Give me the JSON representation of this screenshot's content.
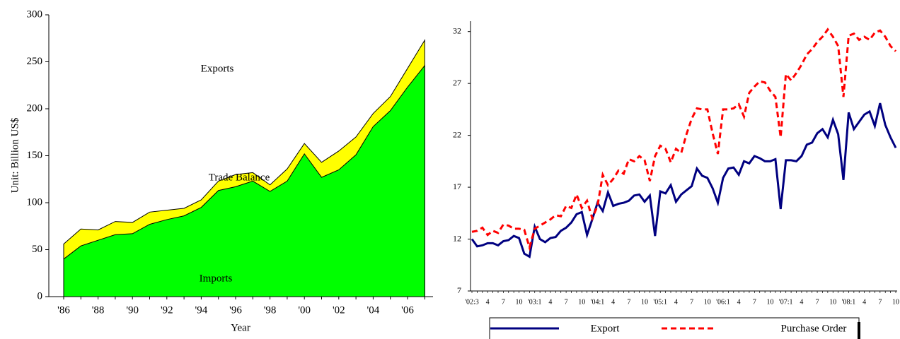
{
  "chart_data": [
    {
      "type": "area",
      "ylabel": "Unit: Billion US$",
      "xlabel": "Year",
      "categories": [
        "'86",
        null,
        "'88",
        null,
        "'90",
        null,
        "'92",
        null,
        "'94",
        null,
        "'96",
        null,
        "'98",
        null,
        "'00",
        null,
        "'02",
        null,
        "'04",
        null,
        "'06",
        null
      ],
      "series": [
        {
          "name": "Exports",
          "color": "#ffff00",
          "values": [
            56,
            72,
            71,
            80,
            79,
            90,
            92,
            94,
            103,
            123,
            130,
            132,
            119,
            136,
            163,
            143,
            155,
            170,
            195,
            213,
            243,
            273
          ]
        },
        {
          "name": "Imports",
          "color": "#00ff00",
          "values": [
            40,
            54,
            60,
            66,
            67,
            77,
            82,
            86,
            95,
            113,
            117,
            123,
            112,
            123,
            152,
            127,
            135,
            151,
            181,
            198,
            223,
            246
          ]
        }
      ],
      "annotations": [
        "Trade Balance"
      ],
      "ylim": [
        0,
        300
      ],
      "yticks": [
        0,
        50,
        100,
        150,
        200,
        250,
        300
      ]
    },
    {
      "type": "line",
      "categories": [
        "'02:3",
        null,
        null,
        "4",
        null,
        null,
        "7",
        null,
        null,
        "10",
        null,
        null,
        "'03:1",
        null,
        null,
        "4",
        null,
        null,
        "7",
        null,
        null,
        "10",
        null,
        null,
        "'04:1",
        null,
        null,
        "4",
        null,
        null,
        "7",
        null,
        null,
        "10",
        null,
        null,
        "'05:1",
        null,
        null,
        "4",
        null,
        null,
        "7",
        null,
        null,
        "10",
        null,
        null,
        "'06:1",
        null,
        null,
        "4",
        null,
        null,
        "7",
        null,
        null,
        "10",
        null,
        null,
        "'07:1",
        null,
        null,
        "4",
        null,
        null,
        "7",
        null,
        null,
        "10",
        null,
        null,
        "'08:1",
        null,
        null,
        "4",
        null,
        null,
        "7",
        null,
        null,
        "10"
      ],
      "series": [
        {
          "name": "Export",
          "color": "#000080",
          "dashed": false,
          "values": [
            12.0,
            11.3,
            11.4,
            11.6,
            11.6,
            11.4,
            11.8,
            11.9,
            12.3,
            12.1,
            10.6,
            10.3,
            13.2,
            12.0,
            11.7,
            12.1,
            12.2,
            12.8,
            13.1,
            13.6,
            14.4,
            14.6,
            12.4,
            13.9,
            15.5,
            14.7,
            16.5,
            15.2,
            15.4,
            15.5,
            15.7,
            16.2,
            16.3,
            15.6,
            16.2,
            12.3,
            16.6,
            16.4,
            17.2,
            15.6,
            16.3,
            16.7,
            17.1,
            18.8,
            18.1,
            17.9,
            16.9,
            15.5,
            17.9,
            18.8,
            18.9,
            18.2,
            19.5,
            19.3,
            20.0,
            19.8,
            19.5,
            19.5,
            19.7,
            14.9,
            19.6,
            19.6,
            19.5,
            20.0,
            21.1,
            21.3,
            22.2,
            22.6,
            21.8,
            23.5,
            22.1,
            17.7,
            24.2,
            22.6,
            23.3,
            24.0,
            24.3,
            22.9,
            25.1,
            23.0,
            21.8,
            20.8
          ]
        },
        {
          "name": "Purchase Order",
          "color": "#ff0000",
          "dashed": true,
          "values": [
            12.7,
            12.8,
            13.1,
            12.4,
            12.8,
            12.6,
            13.4,
            13.3,
            13.0,
            13.0,
            12.9,
            11.2,
            13.0,
            13.3,
            13.6,
            13.9,
            14.3,
            14.2,
            15.2,
            15.0,
            16.3,
            15.0,
            15.7,
            14.0,
            15.2,
            18.2,
            17.2,
            17.8,
            18.6,
            18.3,
            19.7,
            19.5,
            20.0,
            19.6,
            17.6,
            20.0,
            21.0,
            20.7,
            19.4,
            20.7,
            20.3,
            22.1,
            23.6,
            24.6,
            24.5,
            24.5,
            22.2,
            20.2,
            24.5,
            24.5,
            24.6,
            25.0,
            23.8,
            26.1,
            26.7,
            27.2,
            27.1,
            26.3,
            25.7,
            21.8,
            27.9,
            27.3,
            28.0,
            28.8,
            29.8,
            30.3,
            31.0,
            31.5,
            32.2,
            31.5,
            30.6,
            25.7,
            31.6,
            31.8,
            31.2,
            31.5,
            31.2,
            31.9,
            32.1,
            31.5,
            30.6,
            30.1
          ]
        }
      ],
      "ylim": [
        7,
        33
      ],
      "yticks": [
        7,
        12,
        17,
        22,
        27,
        32
      ],
      "legend": "bottom"
    }
  ]
}
